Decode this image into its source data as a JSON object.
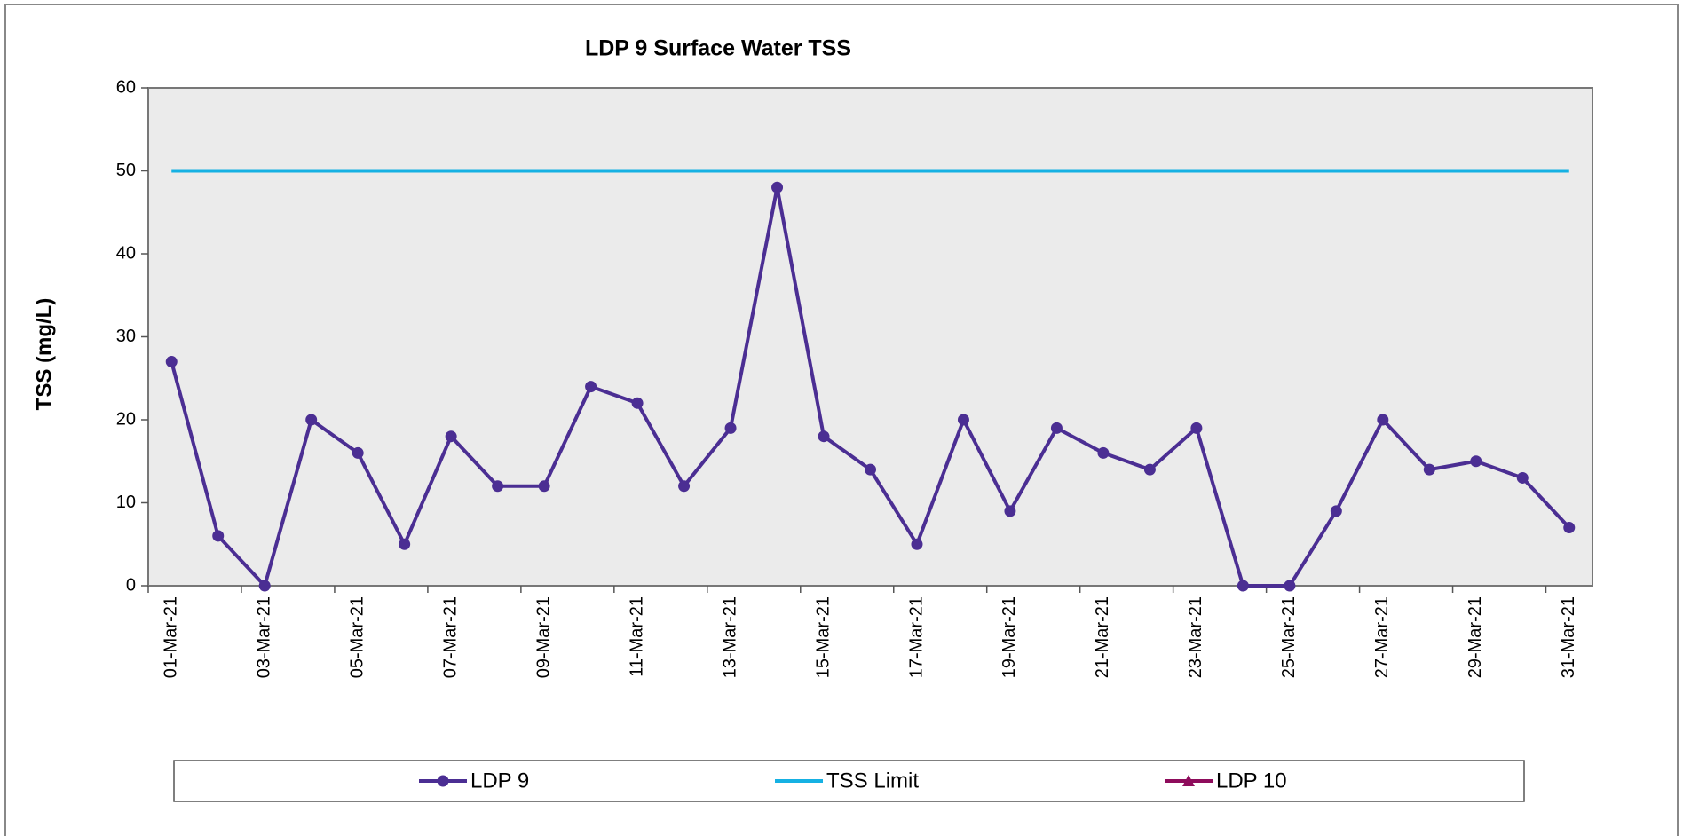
{
  "chart_data": {
    "type": "line",
    "title": "LDP 9 Surface Water TSS",
    "y_label": "TSS (mg/L)",
    "categories": [
      "01-Mar-21",
      null,
      "03-Mar-21",
      null,
      "05-Mar-21",
      null,
      "07-Mar-21",
      null,
      "09-Mar-21",
      null,
      "11-Mar-21",
      null,
      "13-Mar-21",
      null,
      "15-Mar-21",
      null,
      "17-Mar-21",
      null,
      "19-Mar-21",
      null,
      "21-Mar-21",
      null,
      "23-Mar-21",
      null,
      "25-Mar-21",
      null,
      "27-Mar-21",
      null,
      "29-Mar-21",
      null,
      "31-Mar-21"
    ],
    "series": [
      {
        "name": "LDP 9",
        "color": "#4b2e93",
        "marker": "circle",
        "values": [
          27,
          6,
          0,
          20,
          16,
          5,
          18,
          12,
          12,
          24,
          22,
          12,
          19,
          48,
          18,
          14,
          5,
          20,
          9,
          19,
          16,
          14,
          19,
          0,
          0,
          9,
          20,
          14,
          15,
          13,
          7
        ]
      },
      {
        "name": "TSS Limit",
        "color": "#16b1e3",
        "marker": "none",
        "values": [
          50,
          50,
          50,
          50,
          50,
          50,
          50,
          50,
          50,
          50,
          50,
          50,
          50,
          50,
          50,
          50,
          50,
          50,
          50,
          50,
          50,
          50,
          50,
          50,
          50,
          50,
          50,
          50,
          50,
          50,
          50
        ]
      },
      {
        "name": "LDP 10",
        "color": "#8e0c5c",
        "marker": "triangle",
        "values": [
          null,
          null,
          null,
          null,
          null,
          null,
          null,
          null,
          null,
          null,
          null,
          null,
          null,
          null,
          null,
          null,
          null,
          null,
          null,
          null,
          null,
          null,
          null,
          null,
          null,
          null,
          null,
          null,
          null,
          null,
          null
        ]
      }
    ],
    "ylim": [
      0,
      60
    ],
    "yticks": [
      0,
      10,
      20,
      30,
      40,
      50,
      60
    ],
    "grid": false,
    "legend": "bottom"
  }
}
